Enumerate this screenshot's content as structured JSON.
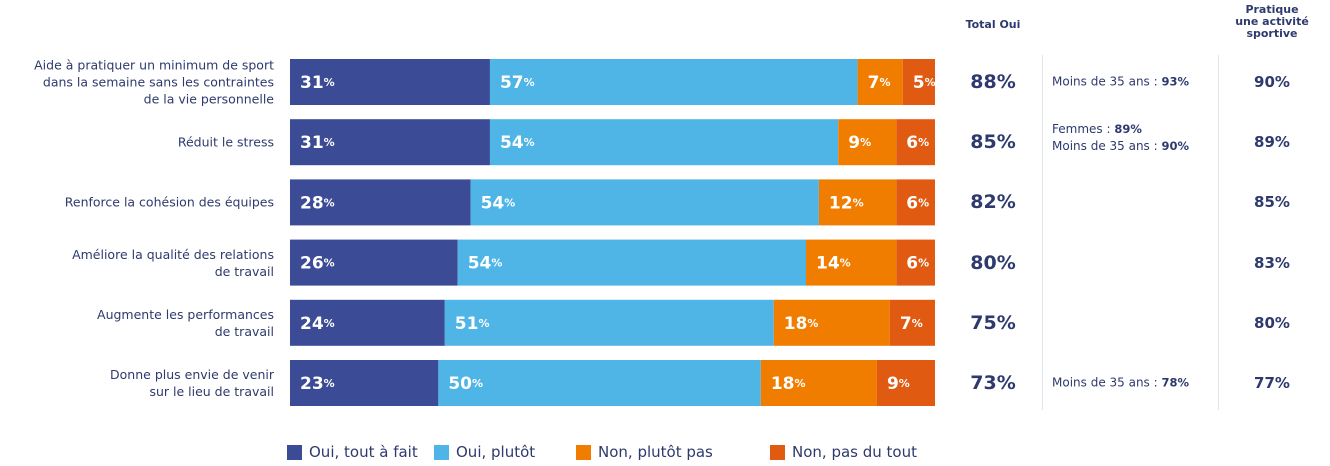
{
  "chart_data": {
    "type": "stacked-bar-horizontal",
    "categories": [
      "Aide à pratiquer un minimum de sport\ndans la semaine sans les contraintes\nde la vie personnelle",
      "Réduit le stress",
      "Renforce la cohésion des équipes",
      "Améliore la qualité des relations\nde travail",
      "Augmente les performances\nde travail",
      "Donne plus envie de venir\nsur le lieu de travail"
    ],
    "xlim": [
      0,
      100
    ],
    "series": [
      {
        "name": "Oui, tout à fait",
        "color": "#3b4b95",
        "values": [
          31,
          31,
          28,
          26,
          24,
          23
        ],
        "value_labels": [
          "31%",
          "31%",
          "28%",
          "26%",
          "24%",
          "23%"
        ]
      },
      {
        "name": "Oui, plutôt",
        "color": "#4fb4e6",
        "values": [
          57,
          54,
          54,
          54,
          51,
          50
        ],
        "value_labels": [
          "57%",
          "54%",
          "54%",
          "54%",
          "51%",
          "50%"
        ]
      },
      {
        "name": "Non, plutôt pas",
        "color": "#f07d00",
        "values": [
          7,
          9,
          12,
          14,
          18,
          18
        ],
        "value_labels": [
          "7%",
          "9%",
          "12%",
          "14%",
          "18%",
          "18%"
        ]
      },
      {
        "name": "Non, pas du tout",
        "color": "#e15a12",
        "values": [
          5,
          6,
          6,
          6,
          7,
          9
        ],
        "value_labels": [
          "5%",
          "6%",
          "6%",
          "6%",
          "7%",
          "9%"
        ]
      }
    ],
    "total": {
      "title": "Total Oui",
      "values": [
        "88%",
        "85%",
        "82%",
        "80%",
        "75%",
        "73%"
      ]
    },
    "notes": [
      [
        {
          "text": "Moins de 35 ans : ",
          "value": "93%"
        }
      ],
      [
        {
          "text": "Femmes : ",
          "value": "89%"
        },
        {
          "text": "Moins de 35 ans : ",
          "value": "90%"
        }
      ],
      [],
      [],
      [],
      [
        {
          "text": "Moins de 35 ans : ",
          "value": "78%"
        }
      ]
    ],
    "sport": {
      "title": "Pratique\nune activité\nsportive",
      "values": [
        "90%",
        "89%",
        "85%",
        "83%",
        "80%",
        "77%"
      ]
    }
  }
}
